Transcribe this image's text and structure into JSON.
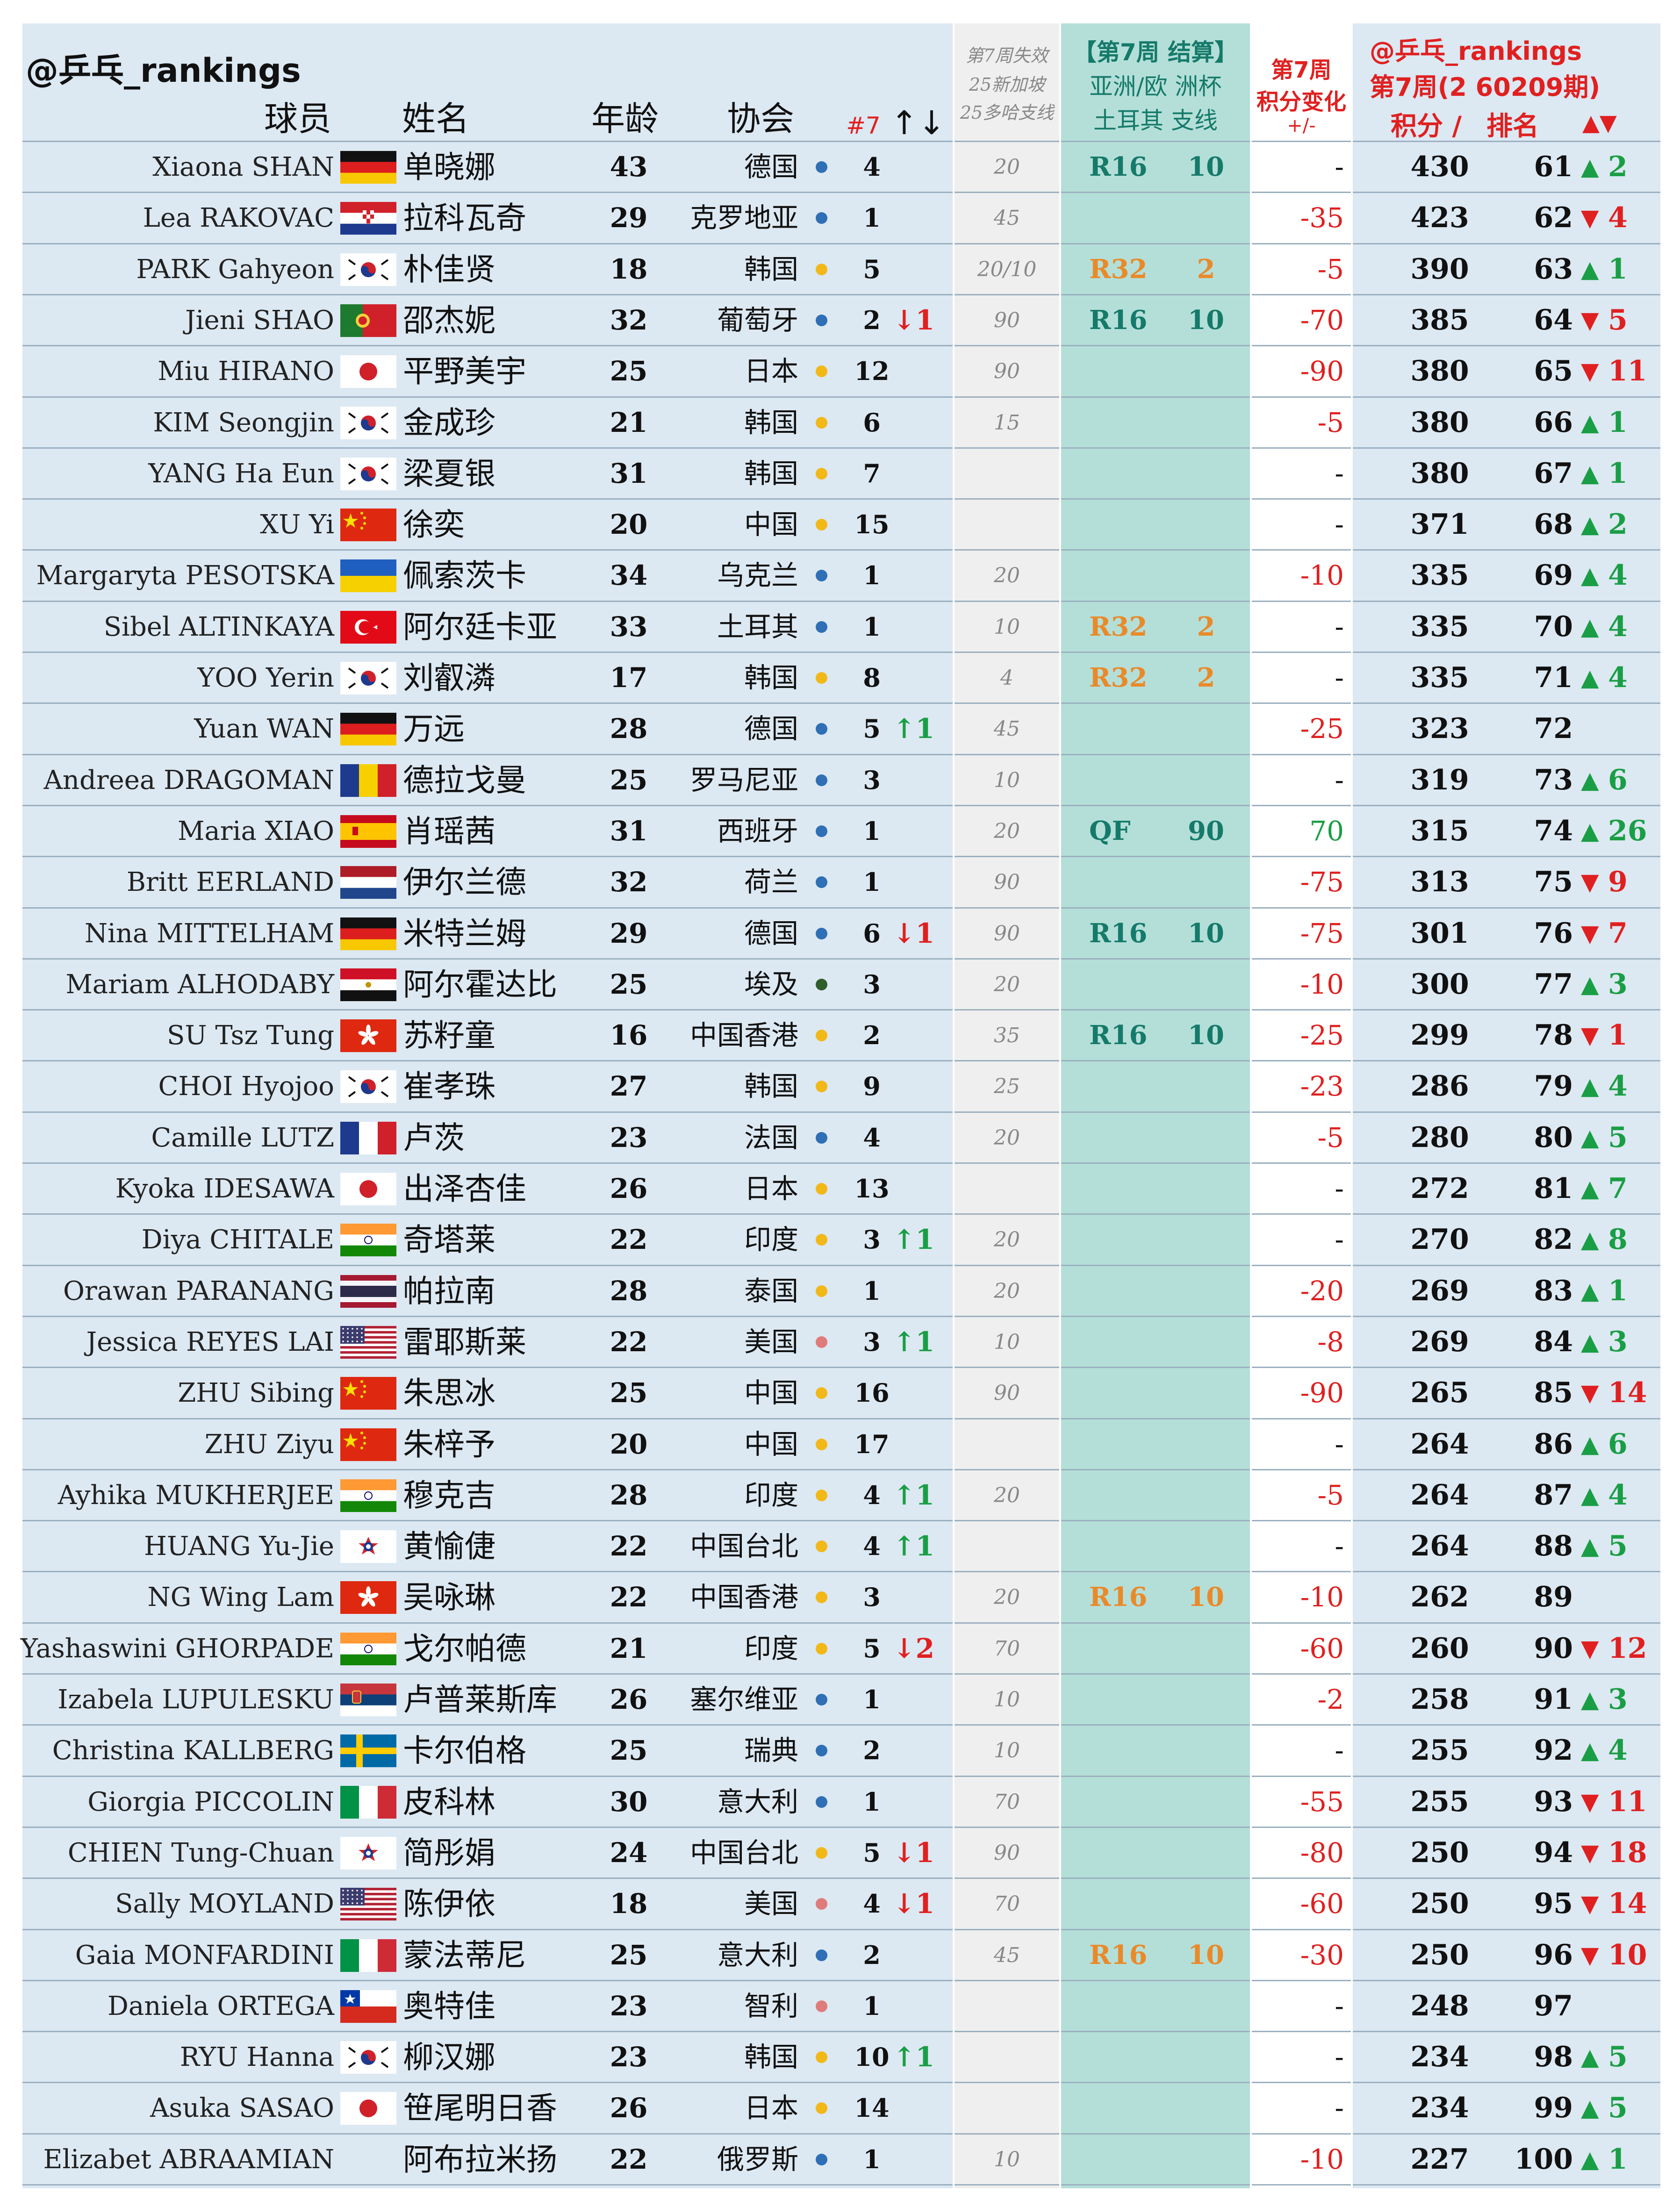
{
  "header": {
    "handle": "@乒乓_rankings",
    "col_player": "球员",
    "col_name": "姓名",
    "col_age": "年龄",
    "col_assoc": "协会",
    "col_wk7": "#7",
    "col_move": "↑↓",
    "lost_lines": [
      "第7周失效",
      "25新加坡",
      "25多哈支线"
    ],
    "asia_lines": [
      "【第7周 结算】",
      "亚洲/欧 洲杯",
      "土耳其 支线"
    ],
    "change_lines": [
      "第7周",
      "积分变化",
      "+/-"
    ],
    "points_lines": [
      "@乒乓_rankings",
      "第7周(2 60209期)",
      "积分 /",
      "排名",
      "▲▼"
    ]
  },
  "colors": {
    "europe": "#2e6fb5",
    "asia": "#f2b818",
    "africa": "#2f5e2a",
    "americas": "#e07b7b",
    "teal": "#157a6a",
    "orange": "#e98a2a",
    "red": "#e02020",
    "green": "#1a9e45"
  },
  "rows": [
    {
      "player": "Xiaona SHAN",
      "flag": "de",
      "name": "单晓娜",
      "age": "43",
      "assoc": "德国",
      "region": "europe",
      "wk7": "4",
      "mv": "",
      "lost": "20",
      "round": "R16",
      "apts": "10",
      "ac": "teal",
      "chg": "-",
      "pts": "430",
      "rank": "61",
      "tri": "▲",
      "delta": "2"
    },
    {
      "player": "Lea RAKOVAC",
      "flag": "hr",
      "name": "拉科瓦奇",
      "age": "29",
      "assoc": "克罗地亚",
      "region": "europe",
      "wk7": "1",
      "mv": "",
      "lost": "45",
      "round": "",
      "apts": "",
      "ac": "",
      "chg": "-35",
      "pts": "423",
      "rank": "62",
      "tri": "▼",
      "delta": "4"
    },
    {
      "player": "PARK Gahyeon",
      "flag": "kr",
      "name": "朴佳贤",
      "age": "18",
      "assoc": "韩国",
      "region": "asia",
      "wk7": "5",
      "mv": "",
      "lost": "20/10",
      "round": "R32",
      "apts": "2",
      "ac": "orange",
      "chg": "-5",
      "pts": "390",
      "rank": "63",
      "tri": "▲",
      "delta": "1"
    },
    {
      "player": "Jieni SHAO",
      "flag": "pt",
      "name": "邵杰妮",
      "age": "32",
      "assoc": "葡萄牙",
      "region": "europe",
      "wk7": "2",
      "mv": "↓1",
      "lost": "90",
      "round": "R16",
      "apts": "10",
      "ac": "teal",
      "chg": "-70",
      "pts": "385",
      "rank": "64",
      "tri": "▼",
      "delta": "5"
    },
    {
      "player": "Miu HIRANO",
      "flag": "jp",
      "name": "平野美宇",
      "age": "25",
      "assoc": "日本",
      "region": "asia",
      "wk7": "12",
      "mv": "",
      "lost": "90",
      "round": "",
      "apts": "",
      "ac": "",
      "chg": "-90",
      "pts": "380",
      "rank": "65",
      "tri": "▼",
      "delta": "11"
    },
    {
      "player": "KIM Seongjin",
      "flag": "kr",
      "name": "金成珍",
      "age": "21",
      "assoc": "韩国",
      "region": "asia",
      "wk7": "6",
      "mv": "",
      "lost": "15",
      "round": "",
      "apts": "",
      "ac": "",
      "chg": "-5",
      "pts": "380",
      "rank": "66",
      "tri": "▲",
      "delta": "1"
    },
    {
      "player": "YANG Ha Eun",
      "flag": "kr",
      "name": "梁夏银",
      "age": "31",
      "assoc": "韩国",
      "region": "asia",
      "wk7": "7",
      "mv": "",
      "lost": "",
      "round": "",
      "apts": "",
      "ac": "",
      "chg": "-",
      "pts": "380",
      "rank": "67",
      "tri": "▲",
      "delta": "1"
    },
    {
      "player": "XU Yi",
      "flag": "cn",
      "name": "徐奕",
      "age": "20",
      "assoc": "中国",
      "region": "asia",
      "wk7": "15",
      "mv": "",
      "lost": "",
      "round": "",
      "apts": "",
      "ac": "",
      "chg": "-",
      "pts": "371",
      "rank": "68",
      "tri": "▲",
      "delta": "2"
    },
    {
      "player": "Margaryta PESOTSKA",
      "flag": "ua",
      "name": "佩索茨卡",
      "age": "34",
      "assoc": "乌克兰",
      "region": "europe",
      "wk7": "1",
      "mv": "",
      "lost": "20",
      "round": "",
      "apts": "",
      "ac": "",
      "chg": "-10",
      "pts": "335",
      "rank": "69",
      "tri": "▲",
      "delta": "4"
    },
    {
      "player": "Sibel ALTINKAYA",
      "flag": "tr",
      "name": "阿尔廷卡亚",
      "age": "33",
      "assoc": "土耳其",
      "region": "europe",
      "wk7": "1",
      "mv": "",
      "lost": "10",
      "round": "R32",
      "apts": "2",
      "ac": "orange",
      "chg": "-",
      "pts": "335",
      "rank": "70",
      "tri": "▲",
      "delta": "4"
    },
    {
      "player": "YOO Yerin",
      "flag": "kr",
      "name": "刘叡潾",
      "age": "17",
      "assoc": "韩国",
      "region": "asia",
      "wk7": "8",
      "mv": "",
      "lost": "4",
      "round": "R32",
      "apts": "2",
      "ac": "orange",
      "chg": "-",
      "pts": "335",
      "rank": "71",
      "tri": "▲",
      "delta": "4"
    },
    {
      "player": "Yuan WAN",
      "flag": "de",
      "name": "万远",
      "age": "28",
      "assoc": "德国",
      "region": "europe",
      "wk7": "5",
      "mv": "↑1",
      "lost": "45",
      "round": "",
      "apts": "",
      "ac": "",
      "chg": "-25",
      "pts": "323",
      "rank": "72",
      "tri": "",
      "delta": ""
    },
    {
      "player": "Andreea DRAGOMAN",
      "flag": "ro",
      "name": "德拉戈曼",
      "age": "25",
      "assoc": "罗马尼亚",
      "region": "europe",
      "wk7": "3",
      "mv": "",
      "lost": "10",
      "round": "",
      "apts": "",
      "ac": "",
      "chg": "-",
      "pts": "319",
      "rank": "73",
      "tri": "▲",
      "delta": "6"
    },
    {
      "player": "Maria XIAO",
      "flag": "es",
      "name": "肖瑶茜",
      "age": "31",
      "assoc": "西班牙",
      "region": "europe",
      "wk7": "1",
      "mv": "",
      "lost": "20",
      "round": "QF",
      "apts": "90",
      "ac": "teal",
      "chg": "70",
      "pts": "315",
      "rank": "74",
      "tri": "▲",
      "delta": "26"
    },
    {
      "player": "Britt EERLAND",
      "flag": "nl",
      "name": "伊尔兰德",
      "age": "32",
      "assoc": "荷兰",
      "region": "europe",
      "wk7": "1",
      "mv": "",
      "lost": "90",
      "round": "",
      "apts": "",
      "ac": "",
      "chg": "-75",
      "pts": "313",
      "rank": "75",
      "tri": "▼",
      "delta": "9"
    },
    {
      "player": "Nina MITTELHAM",
      "flag": "de",
      "name": "米特兰姆",
      "age": "29",
      "assoc": "德国",
      "region": "europe",
      "wk7": "6",
      "mv": "↓1",
      "lost": "90",
      "round": "R16",
      "apts": "10",
      "ac": "teal",
      "chg": "-75",
      "pts": "301",
      "rank": "76",
      "tri": "▼",
      "delta": "7"
    },
    {
      "player": "Mariam ALHODABY",
      "flag": "eg",
      "name": "阿尔霍达比",
      "age": "25",
      "assoc": "埃及",
      "region": "africa",
      "wk7": "3",
      "mv": "",
      "lost": "20",
      "round": "",
      "apts": "",
      "ac": "",
      "chg": "-10",
      "pts": "300",
      "rank": "77",
      "tri": "▲",
      "delta": "3"
    },
    {
      "player": "SU Tsz Tung",
      "flag": "hk",
      "name": "苏籽童",
      "age": "16",
      "assoc": "中国香港",
      "region": "asia",
      "wk7": "2",
      "mv": "",
      "lost": "35",
      "round": "R16",
      "apts": "10",
      "ac": "teal",
      "chg": "-25",
      "pts": "299",
      "rank": "78",
      "tri": "▼",
      "delta": "1"
    },
    {
      "player": "CHOI Hyojoo",
      "flag": "kr",
      "name": "崔孝珠",
      "age": "27",
      "assoc": "韩国",
      "region": "asia",
      "wk7": "9",
      "mv": "",
      "lost": "25",
      "round": "",
      "apts": "",
      "ac": "",
      "chg": "-23",
      "pts": "286",
      "rank": "79",
      "tri": "▲",
      "delta": "4"
    },
    {
      "player": "Camille LUTZ",
      "flag": "fr",
      "name": "卢茨",
      "age": "23",
      "assoc": "法国",
      "region": "europe",
      "wk7": "4",
      "mv": "",
      "lost": "20",
      "round": "",
      "apts": "",
      "ac": "",
      "chg": "-5",
      "pts": "280",
      "rank": "80",
      "tri": "▲",
      "delta": "5"
    },
    {
      "player": "Kyoka IDESAWA",
      "flag": "jp",
      "name": "出泽杏佳",
      "age": "26",
      "assoc": "日本",
      "region": "asia",
      "wk7": "13",
      "mv": "",
      "lost": "",
      "round": "",
      "apts": "",
      "ac": "",
      "chg": "-",
      "pts": "272",
      "rank": "81",
      "tri": "▲",
      "delta": "7"
    },
    {
      "player": "Diya CHITALE",
      "flag": "in",
      "name": "奇塔莱",
      "age": "22",
      "assoc": "印度",
      "region": "asia",
      "wk7": "3",
      "mv": "↑1",
      "lost": "20",
      "round": "",
      "apts": "",
      "ac": "",
      "chg": "-",
      "pts": "270",
      "rank": "82",
      "tri": "▲",
      "delta": "8"
    },
    {
      "player": "Orawan PARANANG",
      "flag": "th",
      "name": "帕拉南",
      "age": "28",
      "assoc": "泰国",
      "region": "asia",
      "wk7": "1",
      "mv": "",
      "lost": "20",
      "round": "",
      "apts": "",
      "ac": "",
      "chg": "-20",
      "pts": "269",
      "rank": "83",
      "tri": "▲",
      "delta": "1"
    },
    {
      "player": "Jessica REYES LAI",
      "flag": "us",
      "name": "雷耶斯莱",
      "age": "22",
      "assoc": "美国",
      "region": "americas",
      "wk7": "3",
      "mv": "↑1",
      "lost": "10",
      "round": "",
      "apts": "",
      "ac": "",
      "chg": "-8",
      "pts": "269",
      "rank": "84",
      "tri": "▲",
      "delta": "3"
    },
    {
      "player": "ZHU Sibing",
      "flag": "cn",
      "name": "朱思冰",
      "age": "25",
      "assoc": "中国",
      "region": "asia",
      "wk7": "16",
      "mv": "",
      "lost": "90",
      "round": "",
      "apts": "",
      "ac": "",
      "chg": "-90",
      "pts": "265",
      "rank": "85",
      "tri": "▼",
      "delta": "14"
    },
    {
      "player": "ZHU Ziyu",
      "flag": "cn",
      "name": "朱梓予",
      "age": "20",
      "assoc": "中国",
      "region": "asia",
      "wk7": "17",
      "mv": "",
      "lost": "",
      "round": "",
      "apts": "",
      "ac": "",
      "chg": "-",
      "pts": "264",
      "rank": "86",
      "tri": "▲",
      "delta": "6"
    },
    {
      "player": "Ayhika MUKHERJEE",
      "flag": "in",
      "name": "穆克吉",
      "age": "28",
      "assoc": "印度",
      "region": "asia",
      "wk7": "4",
      "mv": "↑1",
      "lost": "20",
      "round": "",
      "apts": "",
      "ac": "",
      "chg": "-5",
      "pts": "264",
      "rank": "87",
      "tri": "▲",
      "delta": "4"
    },
    {
      "player": "HUANG Yu-Jie",
      "flag": "tpe",
      "name": "黄愉倢",
      "age": "22",
      "assoc": "中国台北",
      "region": "asia",
      "wk7": "4",
      "mv": "↑1",
      "lost": "",
      "round": "",
      "apts": "",
      "ac": "",
      "chg": "-",
      "pts": "264",
      "rank": "88",
      "tri": "▲",
      "delta": "5"
    },
    {
      "player": "NG Wing Lam",
      "flag": "hk",
      "name": "吴咏琳",
      "age": "22",
      "assoc": "中国香港",
      "region": "asia",
      "wk7": "3",
      "mv": "",
      "lost": "20",
      "round": "R16",
      "apts": "10",
      "ac": "orange",
      "chg": "-10",
      "pts": "262",
      "rank": "89",
      "tri": "",
      "delta": ""
    },
    {
      "player": "Yashaswini GHORPADE",
      "flag": "in",
      "name": "戈尔帕德",
      "age": "21",
      "assoc": "印度",
      "region": "asia",
      "wk7": "5",
      "mv": "↓2",
      "lost": "70",
      "round": "",
      "apts": "",
      "ac": "",
      "chg": "-60",
      "pts": "260",
      "rank": "90",
      "tri": "▼",
      "delta": "12"
    },
    {
      "player": "Izabela LUPULESKU",
      "flag": "rs",
      "name": "卢普莱斯库",
      "age": "26",
      "assoc": "塞尔维亚",
      "region": "europe",
      "wk7": "1",
      "mv": "",
      "lost": "10",
      "round": "",
      "apts": "",
      "ac": "",
      "chg": "-2",
      "pts": "258",
      "rank": "91",
      "tri": "▲",
      "delta": "3"
    },
    {
      "player": "Christina KALLBERG",
      "flag": "se",
      "name": "卡尔伯格",
      "age": "25",
      "assoc": "瑞典",
      "region": "europe",
      "wk7": "2",
      "mv": "",
      "lost": "10",
      "round": "",
      "apts": "",
      "ac": "",
      "chg": "-",
      "pts": "255",
      "rank": "92",
      "tri": "▲",
      "delta": "4"
    },
    {
      "player": "Giorgia PICCOLIN",
      "flag": "it",
      "name": "皮科林",
      "age": "30",
      "assoc": "意大利",
      "region": "europe",
      "wk7": "1",
      "mv": "",
      "lost": "70",
      "round": "",
      "apts": "",
      "ac": "",
      "chg": "-55",
      "pts": "255",
      "rank": "93",
      "tri": "▼",
      "delta": "11"
    },
    {
      "player": "CHIEN Tung-Chuan",
      "flag": "tpe",
      "name": "简彤娟",
      "age": "24",
      "assoc": "中国台北",
      "region": "asia",
      "wk7": "5",
      "mv": "↓1",
      "lost": "90",
      "round": "",
      "apts": "",
      "ac": "",
      "chg": "-80",
      "pts": "250",
      "rank": "94",
      "tri": "▼",
      "delta": "18"
    },
    {
      "player": "Sally MOYLAND",
      "flag": "us",
      "name": "陈伊依",
      "age": "18",
      "assoc": "美国",
      "region": "americas",
      "wk7": "4",
      "mv": "↓1",
      "lost": "70",
      "round": "",
      "apts": "",
      "ac": "",
      "chg": "-60",
      "pts": "250",
      "rank": "95",
      "tri": "▼",
      "delta": "14"
    },
    {
      "player": "Gaia MONFARDINI",
      "flag": "it",
      "name": "蒙法蒂尼",
      "age": "25",
      "assoc": "意大利",
      "region": "europe",
      "wk7": "2",
      "mv": "",
      "lost": "45",
      "round": "R16",
      "apts": "10",
      "ac": "orange",
      "chg": "-30",
      "pts": "250",
      "rank": "96",
      "tri": "▼",
      "delta": "10"
    },
    {
      "player": "Daniela ORTEGA",
      "flag": "cl",
      "name": "奥特佳",
      "age": "23",
      "assoc": "智利",
      "region": "americas",
      "wk7": "1",
      "mv": "",
      "lost": "",
      "round": "",
      "apts": "",
      "ac": "",
      "chg": "-",
      "pts": "248",
      "rank": "97",
      "tri": "",
      "delta": ""
    },
    {
      "player": "RYU Hanna",
      "flag": "kr",
      "name": "柳汉娜",
      "age": "23",
      "assoc": "韩国",
      "region": "asia",
      "wk7": "10",
      "mv": "↑1",
      "lost": "",
      "round": "",
      "apts": "",
      "ac": "",
      "chg": "-",
      "pts": "234",
      "rank": "98",
      "tri": "▲",
      "delta": "5"
    },
    {
      "player": "Asuka SASAO",
      "flag": "jp",
      "name": "笹尾明日香",
      "age": "26",
      "assoc": "日本",
      "region": "asia",
      "wk7": "14",
      "mv": "",
      "lost": "",
      "round": "",
      "apts": "",
      "ac": "",
      "chg": "-",
      "pts": "234",
      "rank": "99",
      "tri": "▲",
      "delta": "5"
    },
    {
      "player": "Elizabet ABRAAMIAN",
      "flag": "",
      "name": "阿布拉米扬",
      "age": "22",
      "assoc": "俄罗斯",
      "region": "europe",
      "wk7": "1",
      "mv": "",
      "lost": "10",
      "round": "",
      "apts": "",
      "ac": "",
      "chg": "-10",
      "pts": "227",
      "rank": "100",
      "tri": "▲",
      "delta": "1"
    }
  ]
}
